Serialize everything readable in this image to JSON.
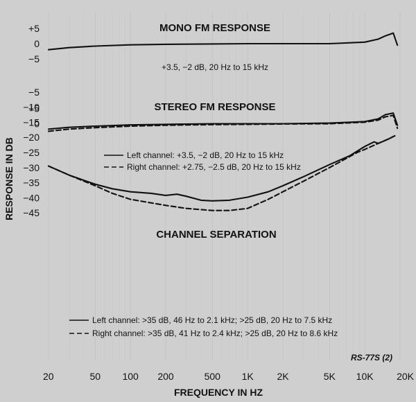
{
  "chart_data": [
    {
      "type": "line",
      "title": "MONO FM RESPONSE",
      "annotation": "+3.5, −2 dB, 20 Hz to 15 kHz",
      "ytick_labels": [
        "+5",
        "0",
        "−5"
      ],
      "x_unit": "Hz",
      "series": [
        {
          "x": [
            20,
            30,
            50,
            100,
            200,
            500,
            1000,
            2000,
            5000,
            10000,
            13000,
            15000,
            17500,
            19000
          ],
          "y": [
            -2,
            -1.3,
            -0.8,
            -0.4,
            -0.2,
            -0.1,
            0,
            0,
            0,
            0.5,
            1.5,
            2.6,
            3.5,
            -0.5
          ]
        }
      ]
    },
    {
      "type": "line",
      "title": "STEREO FM RESPONSE",
      "ytick_labels": [
        "+5",
        "0"
      ],
      "x_unit": "Hz",
      "series": [
        {
          "name": "Left channel: +3.5, −2 dB, 20 Hz to 15 kHz",
          "style": "solid",
          "x": [
            20,
            30,
            50,
            100,
            200,
            500,
            1000,
            2000,
            5000,
            10000,
            13000,
            15000,
            17500,
            19000
          ],
          "y": [
            -1.8,
            -1.2,
            -0.8,
            -0.4,
            -0.2,
            0,
            0,
            0,
            0.2,
            0.7,
            1.6,
            3,
            3.5,
            -0.5
          ]
        },
        {
          "name": "Right channel: +2.75, −2.5 dB, 20 Hz to 15 kHz",
          "style": "dashed",
          "x": [
            20,
            30,
            50,
            100,
            200,
            500,
            1000,
            2000,
            5000,
            10000,
            13000,
            15000,
            17500,
            19000
          ],
          "y": [
            -2.5,
            -1.8,
            -1.3,
            -0.8,
            -0.5,
            -0.3,
            -0.2,
            -0.1,
            0,
            0.5,
            1.2,
            2.3,
            2.75,
            -1.5
          ]
        }
      ]
    },
    {
      "type": "line",
      "title": "CHANNEL SEPARATION",
      "ylabel": "RESPONSE IN DB",
      "xlabel": "FREQUENCY IN HZ",
      "x_scale": "log",
      "xlim": [
        20,
        20000
      ],
      "ylim": [
        -45,
        5
      ],
      "xtick_labels": [
        "20",
        "50",
        "100",
        "200",
        "500",
        "1K",
        "2K",
        "5K",
        "10K",
        "20K"
      ],
      "ytick_labels": [
        "−5",
        "−10",
        "−15",
        "−20",
        "−25",
        "−30",
        "−35",
        "−40",
        "−45"
      ],
      "series": [
        {
          "name": "Left channel: >35 dB, 46 Hz to 2.1 kHz; >25 dB, 20 Hz to 7.5 kHz",
          "style": "solid",
          "x": [
            20,
            30,
            50,
            70,
            100,
            150,
            200,
            250,
            300,
            400,
            500,
            700,
            1000,
            1500,
            2000,
            3000,
            5000,
            7500,
            10000,
            12000,
            13000,
            14000,
            16000,
            18000
          ],
          "y": [
            -29.5,
            -32.5,
            -35.5,
            -37,
            -38,
            -38.5,
            -39.2,
            -38.8,
            -39.5,
            -40.8,
            -41,
            -40.8,
            -39.8,
            -38,
            -36,
            -33,
            -29,
            -26,
            -23,
            -21.5,
            -22,
            -21.5,
            -20.5,
            -19.5
          ]
        },
        {
          "name": "Right channel: >35 dB, 41 Hz to 2.4 kHz; >25 dB, 20 Hz to 8.6 kHz",
          "style": "dashed",
          "x": [
            20,
            30,
            50,
            70,
            100,
            200,
            300,
            500,
            700,
            1000,
            1500,
            2000,
            3000,
            5000,
            8600,
            10000,
            13000,
            16000,
            18000
          ],
          "y": [
            -29.5,
            -32.5,
            -36,
            -38.5,
            -40.5,
            -42.5,
            -43.5,
            -44.2,
            -44.2,
            -43.5,
            -40.5,
            -38,
            -34.5,
            -30,
            -25,
            -24,
            -22,
            -20.5,
            -19.5
          ]
        }
      ]
    }
  ],
  "figure_code": "RS-77S (2)",
  "colors": {
    "paper": "#cfcfcf",
    "ink": "#121212"
  }
}
